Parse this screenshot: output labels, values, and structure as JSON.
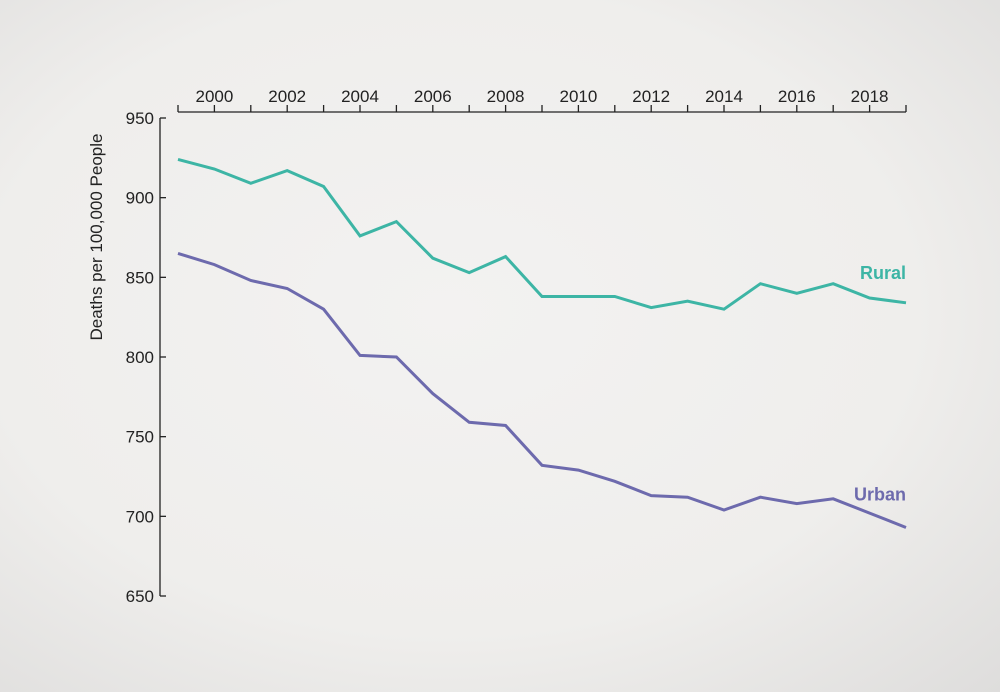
{
  "chart_data": {
    "type": "line",
    "title": "",
    "xlabel": "",
    "ylabel": "Deaths per 100,000 People",
    "xlim": [
      1999,
      2019
    ],
    "ylim": [
      650,
      950
    ],
    "x_ticks": [
      1999,
      2000,
      2001,
      2002,
      2003,
      2004,
      2005,
      2006,
      2007,
      2008,
      2009,
      2010,
      2011,
      2012,
      2013,
      2014,
      2015,
      2016,
      2017,
      2018,
      2019
    ],
    "x_tick_labels": [
      "2000",
      "2002",
      "2004",
      "2006",
      "2008",
      "2010",
      "2012",
      "2014",
      "2016",
      "2018"
    ],
    "x_axis_position": "top",
    "y_ticks": [
      "650",
      "700",
      "750",
      "800",
      "850",
      "900",
      "950"
    ],
    "grid": false,
    "x": [
      1999,
      2000,
      2001,
      2002,
      2003,
      2004,
      2005,
      2006,
      2007,
      2008,
      2009,
      2010,
      2011,
      2012,
      2013,
      2014,
      2015,
      2016,
      2017,
      2018,
      2019
    ],
    "series": [
      {
        "name": "Rural",
        "color": "#3db5a5",
        "values": [
          924,
          918,
          909,
          917,
          907,
          876,
          885,
          862,
          853,
          863,
          838,
          838,
          838,
          831,
          835,
          830,
          846,
          840,
          846,
          837,
          834
        ]
      },
      {
        "name": "Urban",
        "color": "#6d6aad",
        "values": [
          865,
          858,
          848,
          843,
          830,
          801,
          800,
          777,
          759,
          757,
          732,
          729,
          722,
          713,
          712,
          704,
          712,
          708,
          711,
          702,
          693
        ]
      }
    ]
  }
}
